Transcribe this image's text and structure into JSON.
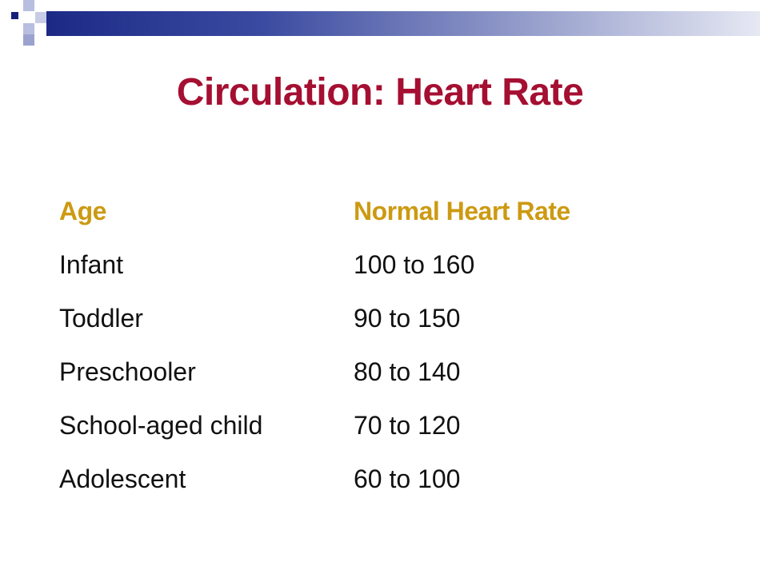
{
  "slide": {
    "title": "Circulation: Heart Rate"
  },
  "table": {
    "headers": {
      "age": "Age",
      "rate": "Normal Heart Rate"
    },
    "rows": [
      {
        "age": "Infant",
        "rate": "100 to 160"
      },
      {
        "age": "Toddler",
        "rate": "90 to 150"
      },
      {
        "age": "Preschooler",
        "rate": "80 to 140"
      },
      {
        "age": "School-aged child",
        "rate": "70 to 120"
      },
      {
        "age": "Adolescent",
        "rate": "60 to 100"
      }
    ]
  },
  "colors": {
    "title": "#a50f31",
    "header": "#cc9a12",
    "band_dark": "#1c2a86",
    "band_light": "#e6e8f3"
  }
}
